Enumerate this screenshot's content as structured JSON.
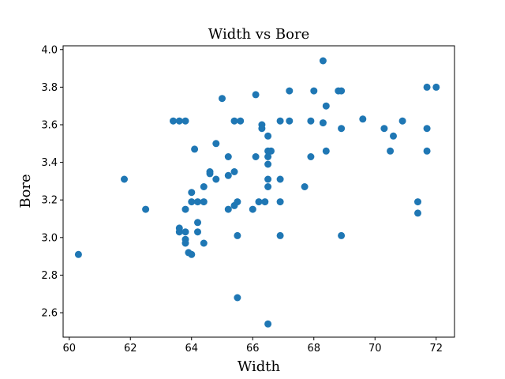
{
  "chart_data": {
    "type": "scatter",
    "title": "Width vs Bore",
    "xlabel": "Width",
    "ylabel": "Bore",
    "xlim": [
      59.8,
      72.6
    ],
    "ylim": [
      2.47,
      4.02
    ],
    "xticks": [
      60,
      62,
      64,
      66,
      68,
      70,
      72
    ],
    "yticks": [
      2.6,
      2.8,
      3.0,
      3.2,
      3.4,
      3.6,
      3.8,
      4.0
    ],
    "xtick_labels": [
      "60",
      "62",
      "64",
      "66",
      "68",
      "70",
      "72"
    ],
    "ytick_labels": [
      "2.6",
      "2.8",
      "3.0",
      "3.2",
      "3.4",
      "3.6",
      "3.8",
      "4.0"
    ],
    "grid": false,
    "marker_color": "#1f77b4",
    "points": [
      {
        "x": 60.3,
        "y": 2.91
      },
      {
        "x": 61.8,
        "y": 3.31
      },
      {
        "x": 62.5,
        "y": 3.15
      },
      {
        "x": 63.4,
        "y": 3.62
      },
      {
        "x": 63.6,
        "y": 3.62
      },
      {
        "x": 63.8,
        "y": 3.62
      },
      {
        "x": 63.6,
        "y": 3.05
      },
      {
        "x": 63.6,
        "y": 3.03
      },
      {
        "x": 63.8,
        "y": 3.03
      },
      {
        "x": 63.8,
        "y": 3.15
      },
      {
        "x": 63.8,
        "y": 2.99
      },
      {
        "x": 63.8,
        "y": 2.97
      },
      {
        "x": 63.9,
        "y": 2.92
      },
      {
        "x": 64.0,
        "y": 2.91
      },
      {
        "x": 64.0,
        "y": 3.19
      },
      {
        "x": 64.0,
        "y": 3.24
      },
      {
        "x": 64.1,
        "y": 3.47
      },
      {
        "x": 64.2,
        "y": 3.19
      },
      {
        "x": 64.2,
        "y": 3.08
      },
      {
        "x": 64.2,
        "y": 3.03
      },
      {
        "x": 64.4,
        "y": 3.27
      },
      {
        "x": 64.4,
        "y": 3.19
      },
      {
        "x": 64.4,
        "y": 2.97
      },
      {
        "x": 64.6,
        "y": 3.35
      },
      {
        "x": 64.6,
        "y": 3.34
      },
      {
        "x": 64.8,
        "y": 3.5
      },
      {
        "x": 64.8,
        "y": 3.31
      },
      {
        "x": 65.0,
        "y": 3.74
      },
      {
        "x": 65.2,
        "y": 3.43
      },
      {
        "x": 65.2,
        "y": 3.33
      },
      {
        "x": 65.2,
        "y": 3.15
      },
      {
        "x": 65.4,
        "y": 3.62
      },
      {
        "x": 65.4,
        "y": 3.35
      },
      {
        "x": 65.4,
        "y": 3.17
      },
      {
        "x": 65.5,
        "y": 3.19
      },
      {
        "x": 65.5,
        "y": 3.01
      },
      {
        "x": 65.5,
        "y": 2.68
      },
      {
        "x": 65.6,
        "y": 3.62
      },
      {
        "x": 66.0,
        "y": 3.15
      },
      {
        "x": 66.1,
        "y": 3.76
      },
      {
        "x": 66.1,
        "y": 3.43
      },
      {
        "x": 66.2,
        "y": 3.19
      },
      {
        "x": 66.3,
        "y": 3.6
      },
      {
        "x": 66.3,
        "y": 3.58
      },
      {
        "x": 66.4,
        "y": 3.19
      },
      {
        "x": 66.5,
        "y": 3.54
      },
      {
        "x": 66.5,
        "y": 3.46
      },
      {
        "x": 66.5,
        "y": 3.43
      },
      {
        "x": 66.5,
        "y": 3.39
      },
      {
        "x": 66.5,
        "y": 3.31
      },
      {
        "x": 66.5,
        "y": 3.27
      },
      {
        "x": 66.6,
        "y": 3.46
      },
      {
        "x": 66.5,
        "y": 2.54
      },
      {
        "x": 66.9,
        "y": 3.62
      },
      {
        "x": 66.9,
        "y": 3.31
      },
      {
        "x": 66.9,
        "y": 3.19
      },
      {
        "x": 66.9,
        "y": 3.01
      },
      {
        "x": 67.2,
        "y": 3.78
      },
      {
        "x": 67.2,
        "y": 3.62
      },
      {
        "x": 67.7,
        "y": 3.27
      },
      {
        "x": 67.9,
        "y": 3.62
      },
      {
        "x": 67.9,
        "y": 3.43
      },
      {
        "x": 68.0,
        "y": 3.78
      },
      {
        "x": 68.3,
        "y": 3.94
      },
      {
        "x": 68.3,
        "y": 3.61
      },
      {
        "x": 68.4,
        "y": 3.7
      },
      {
        "x": 68.4,
        "y": 3.46
      },
      {
        "x": 68.8,
        "y": 3.78
      },
      {
        "x": 68.9,
        "y": 3.78
      },
      {
        "x": 68.9,
        "y": 3.58
      },
      {
        "x": 68.9,
        "y": 3.01
      },
      {
        "x": 69.6,
        "y": 3.63
      },
      {
        "x": 70.3,
        "y": 3.58
      },
      {
        "x": 70.5,
        "y": 3.46
      },
      {
        "x": 70.6,
        "y": 3.54
      },
      {
        "x": 70.9,
        "y": 3.62
      },
      {
        "x": 71.4,
        "y": 3.19
      },
      {
        "x": 71.4,
        "y": 3.13
      },
      {
        "x": 71.7,
        "y": 3.8
      },
      {
        "x": 71.7,
        "y": 3.58
      },
      {
        "x": 71.7,
        "y": 3.46
      },
      {
        "x": 72.0,
        "y": 3.8
      }
    ]
  }
}
